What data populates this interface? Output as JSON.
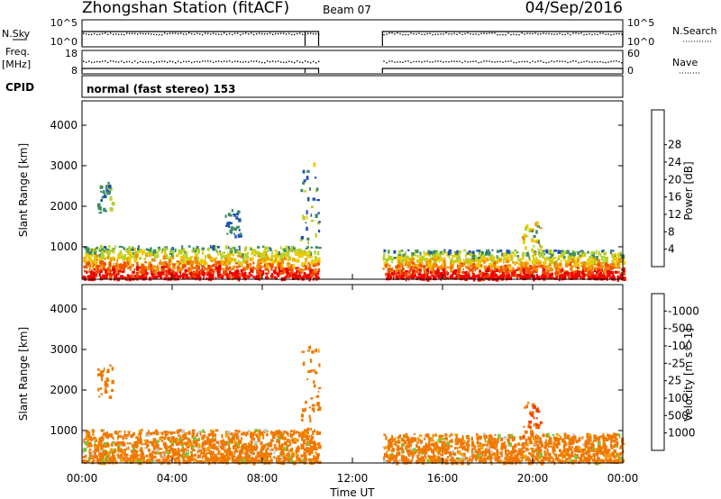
{
  "header": {
    "title": "Zhongshan Station (fitACF)",
    "beam": "Beam 07",
    "date": "04/Sep/2016"
  },
  "nsky_panel": {
    "left_label": "N.Sky",
    "right_label": "N.Search",
    "left_ticks": [
      "10^5",
      "10^0"
    ],
    "right_ticks": [
      "10^5",
      "10^0"
    ]
  },
  "freq_panel": {
    "left_label_1": "Freq.",
    "left_label_2": "[MHz]",
    "right_label": "Nave",
    "left_ticks": [
      "18",
      "8"
    ],
    "right_ticks": [
      "60",
      "0"
    ]
  },
  "cpid_panel": {
    "label": "CPID",
    "mode": "normal (fast stereo) 153"
  },
  "colors": {
    "power": [
      "#0000ff",
      "#1e50b4",
      "#3c8c64",
      "#b4d228",
      "#f0c800",
      "#f08c00",
      "#f05000",
      "#e60000",
      "#ff0000"
    ],
    "velocity": [
      "#ff0000",
      "#f03c00",
      "#f07800",
      "#f5a000",
      "#c8c8c8",
      "#78c83c",
      "#3c8c64",
      "#1e50b4",
      "#0000dc"
    ]
  },
  "chart_data": [
    {
      "type": "heatmap",
      "panel": "power",
      "ylabel": "Slant Range [km]",
      "y_ticks": [
        "1000",
        "2000",
        "3000",
        "4000"
      ],
      "ylim": [
        200,
        4600
      ],
      "xlim": [
        "00:00",
        "24:00"
      ],
      "colorbar_label": "Power [dB]",
      "colorbar_ticks": [
        "4",
        "8",
        "12",
        "16",
        "20",
        "24",
        "28"
      ],
      "colorbar_range": [
        0,
        30
      ],
      "data_gaps_ut": [
        [
          "10:30",
          "13:20"
        ]
      ],
      "echo_regions": [
        {
          "ut": [
            "00:00",
            "10:30"
          ],
          "range_km": [
            200,
            1000
          ],
          "power_db": [
            4,
            30
          ]
        },
        {
          "ut": [
            "00:40",
            "01:20"
          ],
          "range_km": [
            1800,
            2600
          ],
          "power_db": [
            4,
            16
          ]
        },
        {
          "ut": [
            "06:20",
            "07:00"
          ],
          "range_km": [
            1200,
            1900
          ],
          "power_db": [
            4,
            12
          ]
        },
        {
          "ut": [
            "09:40",
            "10:30"
          ],
          "range_km": [
            1000,
            3100
          ],
          "power_db": [
            4,
            20
          ]
        },
        {
          "ut": [
            "13:20",
            "24:00"
          ],
          "range_km": [
            200,
            900
          ],
          "power_db": [
            4,
            30
          ]
        },
        {
          "ut": [
            "19:30",
            "20:20"
          ],
          "range_km": [
            800,
            1600
          ],
          "power_db": [
            8,
            28
          ]
        }
      ]
    },
    {
      "type": "heatmap",
      "panel": "velocity",
      "ylabel": "Slant Range [km]",
      "xlabel": "Time UT",
      "x_ticks": [
        "00:00",
        "04:00",
        "08:00",
        "12:00",
        "16:00",
        "20:00",
        "00:00"
      ],
      "y_ticks": [
        "1000",
        "2000",
        "3000",
        "4000"
      ],
      "ylim": [
        200,
        4600
      ],
      "xlim": [
        "00:00",
        "24:00"
      ],
      "colorbar_label": "Velocity [m s^-1]",
      "colorbar_ticks": [
        "-1000",
        "-500",
        "-100",
        "-25",
        "25",
        "100",
        "500",
        "1000"
      ],
      "data_gaps_ut": [
        [
          "10:30",
          "13:20"
        ]
      ],
      "echo_regions": [
        {
          "ut": [
            "00:00",
            "10:30"
          ],
          "range_km": [
            200,
            1000
          ],
          "velocity_ms": [
            -500,
            100
          ]
        },
        {
          "ut": [
            "00:40",
            "01:20"
          ],
          "range_km": [
            1800,
            2600
          ],
          "velocity_ms": [
            -500,
            -100
          ]
        },
        {
          "ut": [
            "09:40",
            "10:30"
          ],
          "range_km": [
            1000,
            3100
          ],
          "velocity_ms": [
            -500,
            100
          ]
        },
        {
          "ut": [
            "13:20",
            "24:00"
          ],
          "range_km": [
            200,
            900
          ],
          "velocity_ms": [
            -500,
            100
          ]
        },
        {
          "ut": [
            "19:30",
            "20:20"
          ],
          "range_km": [
            800,
            1700
          ],
          "velocity_ms": [
            -1000,
            -500
          ]
        }
      ]
    }
  ]
}
